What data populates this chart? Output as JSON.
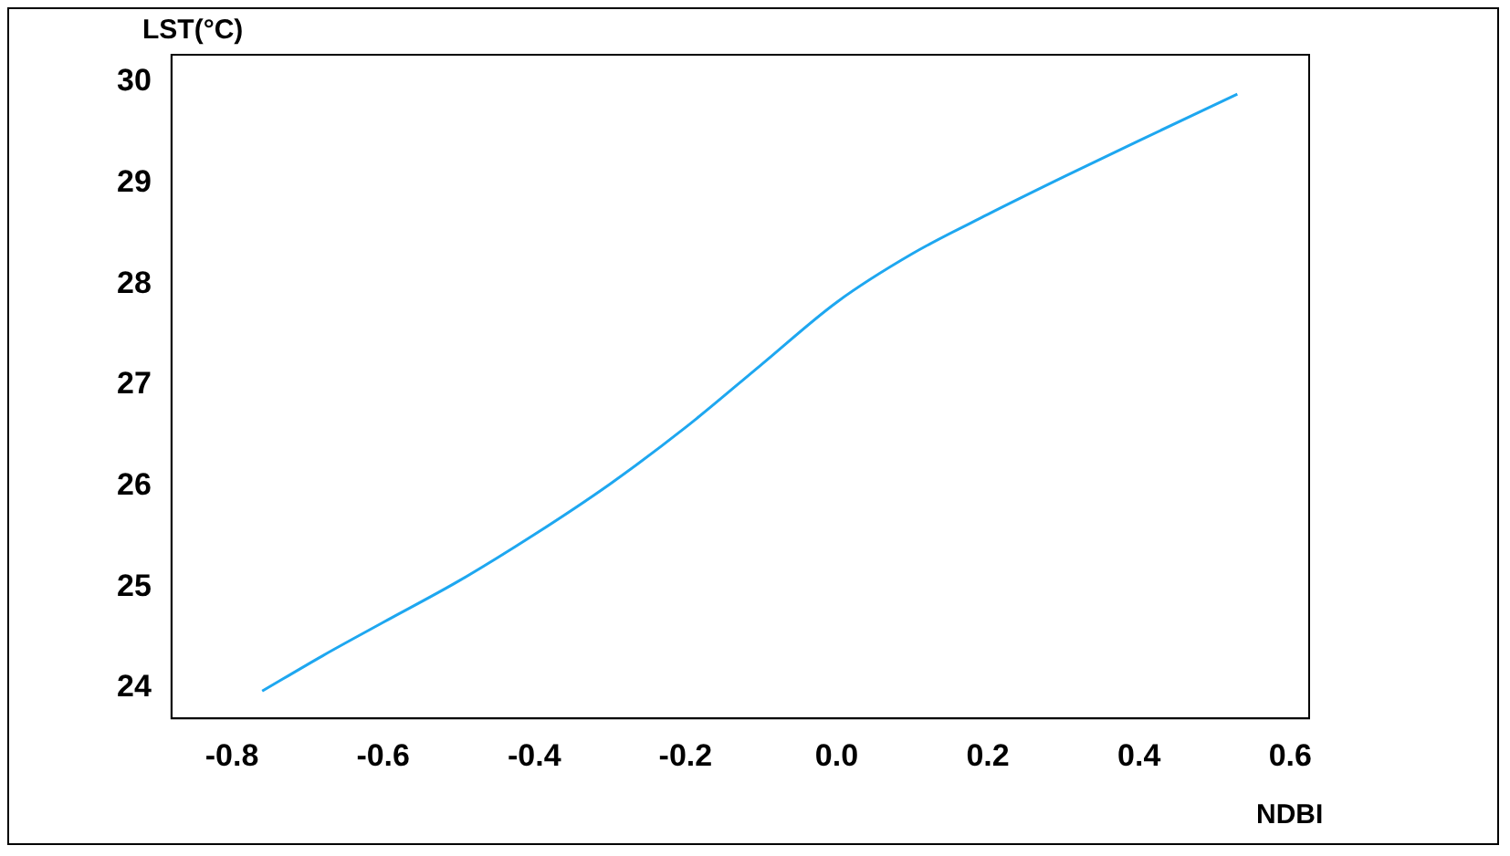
{
  "chart_data": {
    "type": "line",
    "xlabel": "NDBI",
    "ylabel": "LST(°C)",
    "x": [
      -0.76,
      -0.68,
      -0.6,
      -0.5,
      -0.4,
      -0.3,
      -0.2,
      -0.1,
      0,
      0.1,
      0.2,
      0.3,
      0.4,
      0.53
    ],
    "series": [
      {
        "color": "#1ea7f0",
        "values": [
          23.97,
          24.32,
          24.65,
          25.06,
          25.52,
          26.02,
          26.58,
          27.2,
          27.82,
          28.3,
          28.69,
          29.06,
          29.42,
          29.88
        ]
      }
    ],
    "xlim": [
      -0.88,
      0.625
    ],
    "ylim": [
      23.7,
      30.27
    ],
    "xticks": [
      -0.8,
      -0.6,
      -0.4,
      -0.2,
      {
        "value": 0,
        "label": "0.0"
      },
      0.2,
      0.4,
      0.6
    ],
    "yticks": [
      24,
      25,
      26,
      27,
      28,
      29,
      30
    ],
    "grid": false,
    "legend": false,
    "marker": "none",
    "line_style": "solid"
  }
}
